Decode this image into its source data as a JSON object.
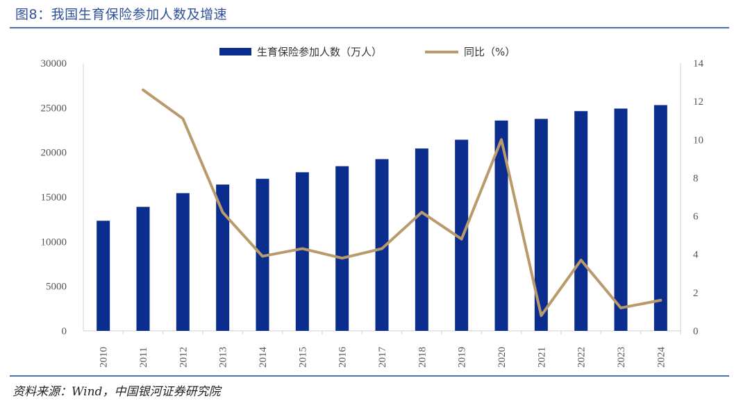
{
  "figure": {
    "title": "图8：我国生育保险参加人数及增速",
    "source": "资料来源：Wind，中国银河证券研究院"
  },
  "chart_data": {
    "type": "bar+line",
    "categories": [
      "2010",
      "2011",
      "2012",
      "2013",
      "2014",
      "2015",
      "2016",
      "2017",
      "2018",
      "2019",
      "2020",
      "2021",
      "2022",
      "2023",
      "2024"
    ],
    "series": [
      {
        "name": "生育保险参加人数（万人）",
        "type": "bar",
        "axis": "left",
        "color": "#0b2d8e",
        "values": [
          12336,
          13892,
          15429,
          16392,
          17039,
          17771,
          18451,
          19240,
          20434,
          21417,
          23567,
          23752,
          24621,
          24907,
          25298
        ]
      },
      {
        "name": "同比（%）",
        "type": "line",
        "axis": "right",
        "color": "#b99a6c",
        "values": [
          null,
          12.6,
          11.1,
          6.2,
          3.9,
          4.3,
          3.8,
          4.3,
          6.2,
          4.8,
          10.0,
          0.8,
          3.7,
          1.2,
          1.6
        ]
      }
    ],
    "y_left": {
      "min": 0,
      "max": 30000,
      "ticks": [
        0,
        5000,
        10000,
        15000,
        20000,
        25000,
        30000
      ]
    },
    "y_right": {
      "min": 0,
      "max": 14,
      "ticks": [
        0,
        2,
        4,
        6,
        8,
        10,
        12,
        14
      ]
    },
    "legend_position": "top-center",
    "grid": false
  }
}
